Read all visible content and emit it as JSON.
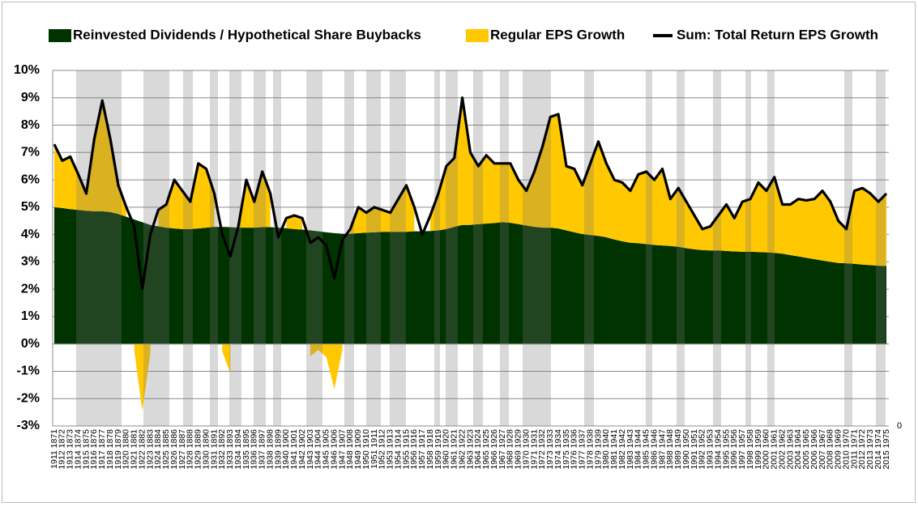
{
  "chart_data": {
    "type": "area",
    "categories": [
      "1911 1871",
      "1912 1872",
      "1913 1873",
      "1914 1874",
      "1915 1875",
      "1916 1876",
      "1917 1877",
      "1918 1878",
      "1919 1879",
      "1920 1880",
      "1921 1881",
      "1922 1882",
      "1923 1883",
      "1924 1884",
      "1925 1885",
      "1926 1886",
      "1927 1887",
      "1928 1888",
      "1929 1889",
      "1930 1890",
      "1931 1891",
      "1932 1892",
      "1933 1893",
      "1934 1894",
      "1935 1895",
      "1936 1896",
      "1937 1897",
      "1938 1898",
      "1939 1899",
      "1940 1900",
      "1941 1901",
      "1942 1902",
      "1943 1903",
      "1944 1904",
      "1945 1905",
      "1946 1906",
      "1947 1907",
      "1948 1908",
      "1949 1909",
      "1950 1910",
      "1951 1911",
      "1952 1912",
      "1953 1913",
      "1954 1914",
      "1955 1915",
      "1956 1916",
      "1957 1917",
      "1958 1918",
      "1959 1919",
      "1960 1920",
      "1961 1921",
      "1962 1922",
      "1963 1923",
      "1964 1924",
      "1965 1925",
      "1966 1926",
      "1967 1927",
      "1968 1928",
      "1969 1929",
      "1970 1930",
      "1971 1931",
      "1972 1932",
      "1973 1933",
      "1974 1934",
      "1975 1935",
      "1976 1936",
      "1977 1937",
      "1978 1938",
      "1979 1939",
      "1980 1940",
      "1981 1941",
      "1982 1942",
      "1983 1943",
      "1984 1944",
      "1985 1945",
      "1986 1946",
      "1987 1947",
      "1988 1948",
      "1989 1949",
      "1990 1950",
      "1991 1951",
      "1992 1952",
      "1993 1953",
      "1994 1954",
      "1995 1955",
      "1996 1956",
      "1997 1957",
      "1998 1958",
      "1999 1959",
      "2000 1960",
      "2001 1961",
      "2002 1962",
      "2003 1963",
      "2004 1964",
      "2005 1965",
      "2006 1966",
      "2007 1967",
      "2008 1968",
      "2009 1969",
      "2010 1970",
      "2011 1971",
      "2012 1972",
      "2013 1973",
      "2014 1974",
      "2015 1975"
    ],
    "series": [
      {
        "name": "Reinvested Dividends / Hypothetical Share Buybacks",
        "color": "#003300",
        "type": "area",
        "values": [
          5.0,
          4.97,
          4.93,
          4.9,
          4.87,
          4.85,
          4.85,
          4.82,
          4.75,
          4.65,
          4.55,
          4.45,
          4.35,
          4.3,
          4.25,
          4.22,
          4.2,
          4.2,
          4.22,
          4.25,
          4.28,
          4.28,
          4.27,
          4.25,
          4.25,
          4.25,
          4.27,
          4.27,
          4.25,
          4.23,
          4.2,
          4.18,
          4.15,
          4.12,
          4.08,
          4.05,
          4.03,
          4.03,
          4.05,
          4.07,
          4.08,
          4.1,
          4.1,
          4.1,
          4.1,
          4.12,
          4.12,
          4.13,
          4.15,
          4.2,
          4.28,
          4.35,
          4.35,
          4.38,
          4.4,
          4.42,
          4.45,
          4.43,
          4.38,
          4.33,
          4.28,
          4.25,
          4.25,
          4.22,
          4.15,
          4.08,
          4.02,
          3.98,
          3.95,
          3.9,
          3.82,
          3.75,
          3.7,
          3.68,
          3.65,
          3.62,
          3.6,
          3.58,
          3.55,
          3.5,
          3.46,
          3.43,
          3.42,
          3.42,
          3.4,
          3.38,
          3.37,
          3.37,
          3.36,
          3.35,
          3.33,
          3.3,
          3.25,
          3.2,
          3.15,
          3.1,
          3.05,
          3.0,
          2.96,
          2.95,
          2.93,
          2.9,
          2.88,
          2.86,
          2.85
        ]
      },
      {
        "name": "Regular EPS Growth",
        "color": "#ffc800",
        "type": "area",
        "values": [
          2.3,
          1.73,
          1.92,
          1.3,
          0.63,
          2.65,
          4.05,
          2.68,
          1.05,
          0.35,
          -0.25,
          -2.45,
          -0.35,
          0.6,
          0.85,
          1.78,
          1.4,
          1.0,
          2.38,
          2.15,
          1.22,
          -0.28,
          -1.07,
          0.05,
          1.75,
          0.95,
          2.03,
          1.23,
          -0.35,
          0.37,
          0.5,
          0.42,
          -0.45,
          -0.22,
          -0.48,
          -1.65,
          -0.23,
          0.17,
          0.95,
          0.73,
          0.92,
          0.8,
          0.7,
          1.2,
          1.7,
          0.88,
          -0.12,
          0.57,
          1.35,
          2.3,
          2.52,
          4.65,
          2.65,
          2.12,
          2.5,
          2.18,
          2.15,
          2.17,
          1.62,
          1.27,
          2.02,
          2.95,
          4.05,
          4.18,
          2.35,
          2.32,
          1.78,
          2.62,
          3.45,
          2.7,
          2.18,
          2.15,
          1.9,
          2.52,
          2.65,
          2.38,
          2.8,
          1.72,
          2.15,
          1.7,
          1.24,
          0.77,
          0.88,
          1.28,
          1.7,
          1.22,
          1.83,
          1.93,
          2.54,
          2.25,
          2.77,
          1.8,
          1.85,
          2.1,
          2.1,
          2.2,
          2.55,
          2.2,
          1.54,
          1.25,
          2.67,
          2.8,
          2.62,
          2.34,
          2.65
        ]
      },
      {
        "name": "Sum: Total Return EPS Growth",
        "color": "#000000",
        "type": "line",
        "values": [
          7.3,
          6.7,
          6.85,
          6.2,
          5.5,
          7.5,
          8.9,
          7.5,
          5.8,
          5.0,
          4.3,
          2.0,
          4.0,
          4.9,
          5.1,
          6.0,
          5.6,
          5.2,
          6.6,
          6.4,
          5.5,
          4.0,
          3.2,
          4.3,
          6.0,
          5.2,
          6.3,
          5.5,
          3.9,
          4.6,
          4.7,
          4.6,
          3.7,
          3.9,
          3.6,
          2.4,
          3.8,
          4.2,
          5.0,
          4.8,
          5.0,
          4.9,
          4.8,
          5.3,
          5.8,
          5.0,
          4.0,
          4.7,
          5.5,
          6.5,
          6.8,
          9.0,
          7.0,
          6.5,
          6.9,
          6.6,
          6.6,
          6.6,
          6.0,
          5.6,
          6.3,
          7.2,
          8.3,
          8.4,
          6.5,
          6.4,
          5.8,
          6.6,
          7.4,
          6.6,
          6.0,
          5.9,
          5.6,
          6.2,
          6.3,
          6.0,
          6.4,
          5.3,
          5.7,
          5.2,
          4.7,
          4.2,
          4.3,
          4.7,
          5.1,
          4.6,
          5.2,
          5.3,
          5.9,
          5.6,
          6.1,
          5.1,
          5.1,
          5.3,
          5.25,
          5.3,
          5.6,
          5.2,
          4.5,
          4.2,
          5.6,
          5.7,
          5.5,
          5.2,
          5.5
        ]
      }
    ],
    "ylim": [
      -3,
      10
    ],
    "yticks": [
      {
        "value": -3,
        "label": "-3%"
      },
      {
        "value": -2,
        "label": "-2%"
      },
      {
        "value": -1,
        "label": "-1%"
      },
      {
        "value": 0,
        "label": "0%"
      },
      {
        "value": 1,
        "label": "1%"
      },
      {
        "value": 2,
        "label": "2%"
      },
      {
        "value": 3,
        "label": "3%"
      },
      {
        "value": 4,
        "label": "4%"
      },
      {
        "value": 5,
        "label": "5%"
      },
      {
        "value": 6,
        "label": "6%"
      },
      {
        "value": 7,
        "label": "7%"
      },
      {
        "value": 8,
        "label": "8%"
      },
      {
        "value": 9,
        "label": "9%"
      },
      {
        "value": 10,
        "label": "10%"
      }
    ],
    "y2lim": [
      0,
      1
    ],
    "y2ticks": [
      0
    ],
    "grid": true,
    "legend": "top"
  }
}
